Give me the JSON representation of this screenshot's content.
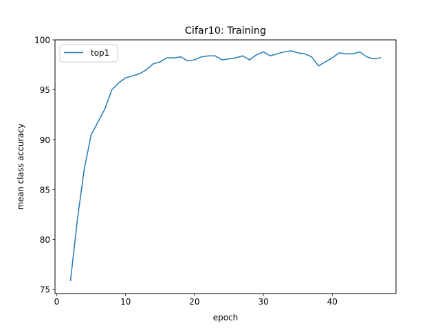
{
  "chart_data": {
    "type": "line",
    "title": "Cifar10: Training",
    "xlabel": "epoch",
    "ylabel": "mean class accuracy",
    "xlim": [
      -0.25,
      49.25
    ],
    "ylim": [
      74.6,
      100
    ],
    "xticks": [
      0,
      10,
      20,
      30,
      40
    ],
    "yticks": [
      75,
      80,
      85,
      90,
      95,
      100
    ],
    "legend_position": "top-left",
    "grid": false,
    "series": [
      {
        "name": "top1",
        "color": "#1f77b4",
        "x": [
          2,
          3,
          4,
          5,
          6,
          7,
          8,
          9,
          10,
          11,
          12,
          13,
          14,
          15,
          16,
          17,
          18,
          19,
          20,
          21,
          22,
          23,
          24,
          25,
          26,
          27,
          28,
          29,
          30,
          31,
          32,
          33,
          34,
          35,
          36,
          37,
          38,
          39,
          40,
          41,
          42,
          43,
          44,
          45,
          46,
          47
        ],
        "y": [
          75.9,
          82.0,
          87.1,
          90.5,
          91.8,
          93.1,
          95.0,
          95.7,
          96.2,
          96.4,
          96.6,
          97.0,
          97.6,
          97.8,
          98.2,
          98.2,
          98.3,
          97.9,
          98.0,
          98.3,
          98.4,
          98.4,
          98.0,
          98.1,
          98.2,
          98.4,
          98.0,
          98.5,
          98.8,
          98.4,
          98.6,
          98.8,
          98.9,
          98.7,
          98.6,
          98.3,
          97.4,
          97.8,
          98.2,
          98.7,
          98.6,
          98.6,
          98.8,
          98.3,
          98.1,
          98.2
        ]
      }
    ]
  }
}
